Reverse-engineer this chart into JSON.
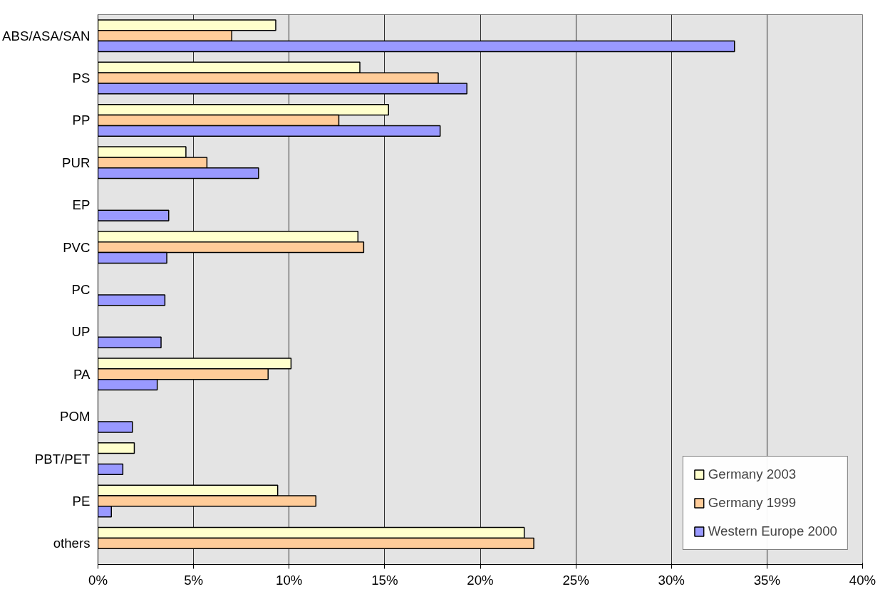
{
  "chart_data": {
    "type": "bar",
    "orientation": "horizontal",
    "categories": [
      "ABS/ASA/SAN",
      "PS",
      "PP",
      "PUR",
      "EP",
      "PVC",
      "PC",
      "UP",
      "PA",
      "POM",
      "PBT/PET",
      "PE",
      "others"
    ],
    "series": [
      {
        "name": "Germany 2003",
        "color": "#ffffcc",
        "values": [
          9.3,
          13.7,
          15.2,
          4.6,
          null,
          13.6,
          null,
          null,
          10.1,
          null,
          1.9,
          9.4,
          22.3
        ]
      },
      {
        "name": "Germany 1999",
        "color": "#ffcc99",
        "values": [
          7.0,
          17.8,
          12.6,
          5.7,
          null,
          13.9,
          null,
          null,
          8.9,
          null,
          null,
          11.4,
          22.8
        ]
      },
      {
        "name": "Western Europe 2000",
        "color": "#9999ff",
        "values": [
          33.3,
          19.3,
          17.9,
          8.4,
          3.7,
          3.6,
          3.5,
          3.3,
          3.1,
          1.8,
          1.3,
          0.7,
          null
        ]
      }
    ],
    "xlim": [
      0,
      40
    ],
    "xticks": [
      {
        "value": 0,
        "label": "0%"
      },
      {
        "value": 5,
        "label": "5%"
      },
      {
        "value": 10,
        "label": "10%"
      },
      {
        "value": 15,
        "label": "15%"
      },
      {
        "value": 20,
        "label": "20%"
      },
      {
        "value": 25,
        "label": "25%"
      },
      {
        "value": 30,
        "label": "30%"
      },
      {
        "value": 35,
        "label": "35%"
      },
      {
        "value": 40,
        "label": "40%"
      }
    ],
    "grid": "x",
    "legend": "bottom right"
  }
}
